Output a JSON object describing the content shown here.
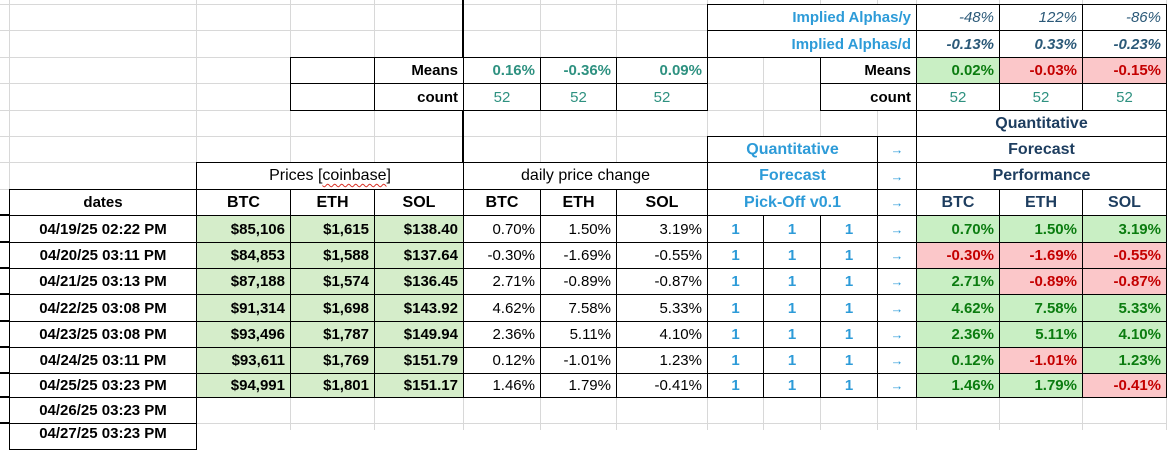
{
  "implied": {
    "rows": [
      {
        "label": "Implied Alphas/y",
        "values": [
          "-48%",
          "122%",
          "-86%"
        ]
      },
      {
        "label": "Implied Alphas/d",
        "values": [
          "-0.13%",
          "0.33%",
          "-0.23%"
        ]
      }
    ]
  },
  "stats_left": {
    "means_label": "Means",
    "means": [
      "0.16%",
      "-0.36%",
      "0.09%"
    ],
    "count_label": "count",
    "counts": [
      "52",
      "52",
      "52"
    ]
  },
  "stats_right": {
    "means_label": "Means",
    "means": [
      "0.02%",
      "-0.03%",
      "-0.15%"
    ],
    "count_label": "count",
    "counts": [
      "52",
      "52",
      "52"
    ]
  },
  "qf_left": {
    "lines": [
      "Quantitative",
      "Forecast",
      "Pick-Off v0.1"
    ],
    "arrow": "→"
  },
  "qf_right": {
    "lines": [
      "Quantitative",
      "Forecast",
      "Performance"
    ],
    "coins": [
      "BTC",
      "ETH",
      "SOL"
    ]
  },
  "price_header": {
    "label": "Prices [coinbase]",
    "misspelled": "coinbase"
  },
  "change_header": "daily price change",
  "dates_header": "dates",
  "coins": [
    "BTC",
    "ETH",
    "SOL"
  ],
  "rows": [
    {
      "date": "04/19/25 02:22 PM",
      "prices": [
        "$85,106",
        "$1,615",
        "$138.40"
      ],
      "changes": [
        "0.70%",
        "1.50%",
        "3.19%"
      ],
      "picks": [
        "1",
        "1",
        "1"
      ],
      "arrow": "→",
      "perf": [
        "0.70%",
        "1.50%",
        "3.19%"
      ]
    },
    {
      "date": "04/20/25 03:11 PM",
      "prices": [
        "$84,853",
        "$1,588",
        "$137.64"
      ],
      "changes": [
        "-0.30%",
        "-1.69%",
        "-0.55%"
      ],
      "picks": [
        "1",
        "1",
        "1"
      ],
      "arrow": "→",
      "perf": [
        "-0.30%",
        "-1.69%",
        "-0.55%"
      ]
    },
    {
      "date": "04/21/25 03:13 PM",
      "prices": [
        "$87,188",
        "$1,574",
        "$136.45"
      ],
      "changes": [
        "2.71%",
        "-0.89%",
        "-0.87%"
      ],
      "picks": [
        "1",
        "1",
        "1"
      ],
      "arrow": "→",
      "perf": [
        "2.71%",
        "-0.89%",
        "-0.87%"
      ]
    },
    {
      "date": "04/22/25 03:08 PM",
      "prices": [
        "$91,314",
        "$1,698",
        "$143.92"
      ],
      "changes": [
        "4.62%",
        "7.58%",
        "5.33%"
      ],
      "picks": [
        "1",
        "1",
        "1"
      ],
      "arrow": "→",
      "perf": [
        "4.62%",
        "7.58%",
        "5.33%"
      ]
    },
    {
      "date": "04/23/25 03:08 PM",
      "prices": [
        "$93,496",
        "$1,787",
        "$149.94"
      ],
      "changes": [
        "2.36%",
        "5.11%",
        "4.10%"
      ],
      "picks": [
        "1",
        "1",
        "1"
      ],
      "arrow": "→",
      "perf": [
        "2.36%",
        "5.11%",
        "4.10%"
      ]
    },
    {
      "date": "04/24/25 03:11 PM",
      "prices": [
        "$93,611",
        "$1,769",
        "$151.79"
      ],
      "changes": [
        "0.12%",
        "-1.01%",
        "1.23%"
      ],
      "picks": [
        "1",
        "1",
        "1"
      ],
      "arrow": "→",
      "perf": [
        "0.12%",
        "-1.01%",
        "1.23%"
      ]
    },
    {
      "date": "04/25/25 03:23 PM",
      "prices": [
        "$94,991",
        "$1,801",
        "$151.17"
      ],
      "changes": [
        "1.46%",
        "1.79%",
        "-0.41%"
      ],
      "picks": [
        "1",
        "1",
        "1"
      ],
      "arrow": "→",
      "perf": [
        "1.46%",
        "1.79%",
        "-0.41%"
      ]
    },
    {
      "date": "04/26/25 03:23 PM",
      "prices": null,
      "changes": null,
      "picks": null,
      "perf": null
    },
    {
      "date": "04/27/25 03:23 PM",
      "prices": null,
      "changes": null,
      "picks": null,
      "perf": null,
      "partial": true
    }
  ],
  "colors": {
    "accent_blue": "#2d9bd8",
    "header_navy": "#1d3d5f",
    "stat_teal": "#2e9180",
    "positive_text": "#0b7c10",
    "negative_text": "#c40000",
    "positive_bg": "#c9efc4",
    "negative_bg": "#fbc7c9",
    "price_bg": "#d5edca"
  }
}
